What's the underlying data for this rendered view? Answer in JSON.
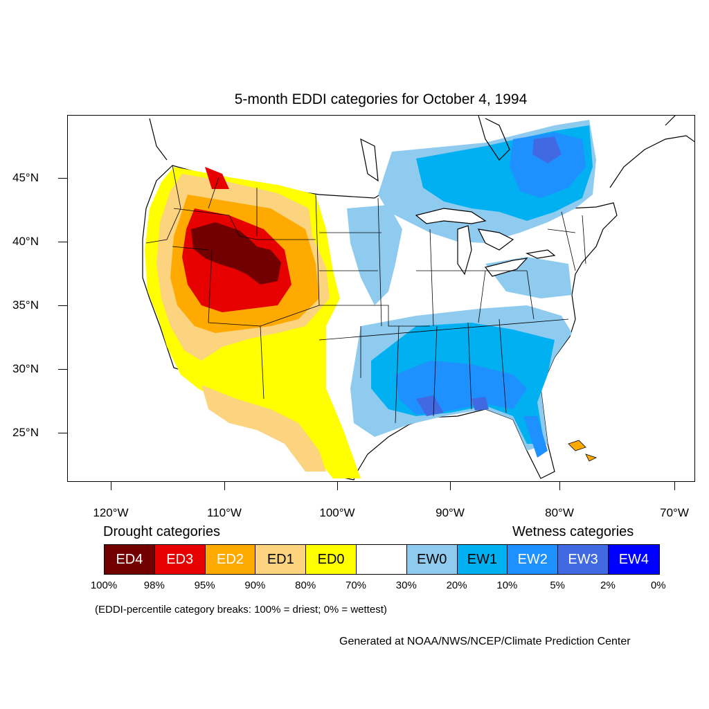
{
  "title": "5-month EDDI categories for October 4, 1994",
  "lat_labels": [
    "45°N",
    "40°N",
    "35°N",
    "30°N",
    "25°N"
  ],
  "lon_labels": [
    "120°W",
    "110°W",
    "100°W",
    "90°W",
    "80°W",
    "70°W"
  ],
  "legend": {
    "drought_heading": "Drought categories",
    "wetness_heading": "Wetness categories",
    "categories": [
      {
        "label": "ED4",
        "color": "#730000",
        "text_color": "#ffffff"
      },
      {
        "label": "ED3",
        "color": "#e60000",
        "text_color": "#ffffff"
      },
      {
        "label": "ED2",
        "color": "#ffaa00",
        "text_color": "#ffffff"
      },
      {
        "label": "ED1",
        "color": "#fcd37f",
        "text_color": "#000000"
      },
      {
        "label": "ED0",
        "color": "#ffff00",
        "text_color": "#000000"
      },
      {
        "label": "",
        "color": "#ffffff",
        "text_color": "#000000"
      },
      {
        "label": "EW0",
        "color": "#8fcbef",
        "text_color": "#000000"
      },
      {
        "label": "EW1",
        "color": "#00b0f0",
        "text_color": "#000000"
      },
      {
        "label": "EW2",
        "color": "#1e90ff",
        "text_color": "#ffffff"
      },
      {
        "label": "EW3",
        "color": "#4169e1",
        "text_color": "#ffffff"
      },
      {
        "label": "EW4",
        "color": "#0000ff",
        "text_color": "#ffffff"
      }
    ],
    "breaks": [
      "100%",
      "98%",
      "95%",
      "90%",
      "80%",
      "70%",
      "30%",
      "20%",
      "10%",
      "5%",
      "2%",
      "0%"
    ]
  },
  "breaks_note": "(EDDI-percentile category breaks: 100% = driest; 0% = wettest)",
  "credit": "Generated at NOAA/NWS/NCEP/Climate Prediction Center"
}
